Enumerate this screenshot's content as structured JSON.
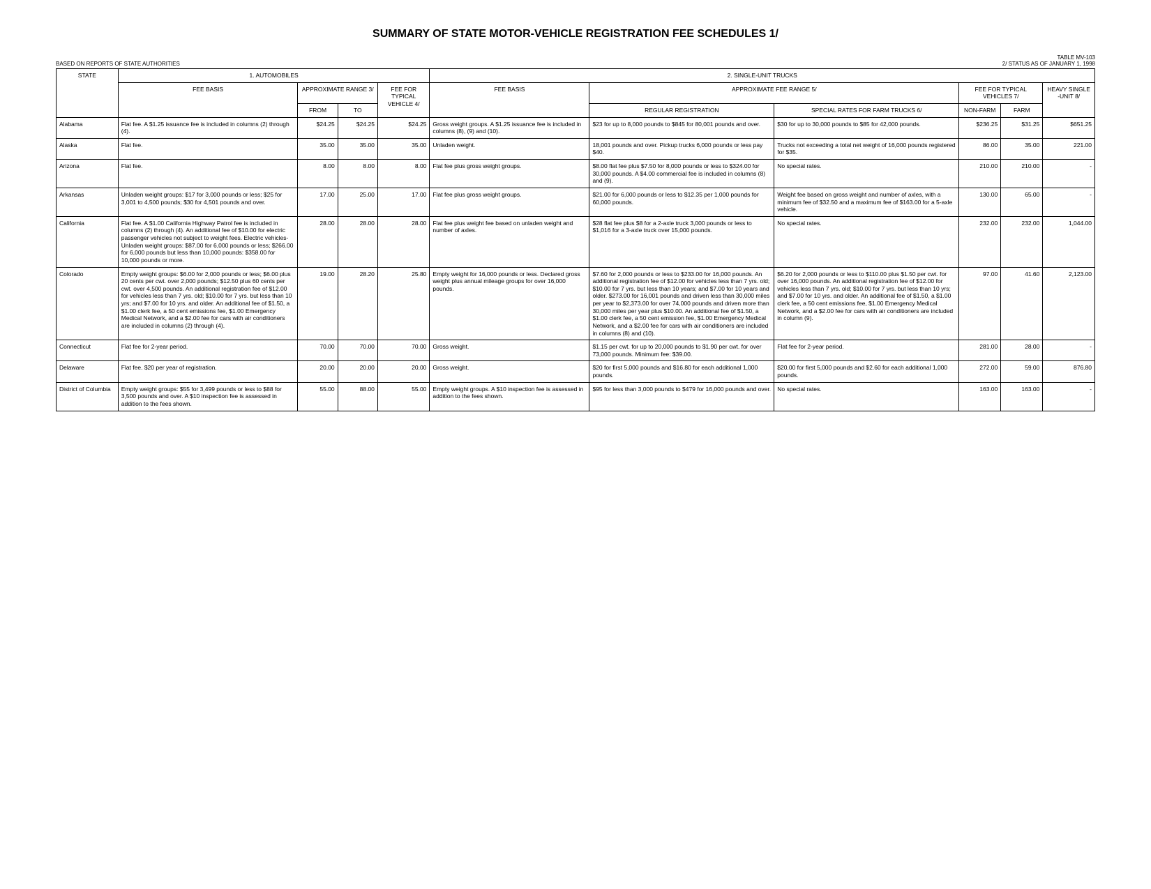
{
  "title": "SUMMARY OF STATE MOTOR-VEHICLE REGISTRATION FEE SCHEDULES   1/",
  "table_no": "TABLE MV-103",
  "subtitle_left": "BASED ON REPORTS OF STATE AUTHORITIES",
  "subtitle_right": "2/ STATUS AS OF JANUARY 1, 1998",
  "columns": {
    "automobiles": "1.  AUTOMOBILES",
    "single_unit": "2.  SINGLE-UNIT TRUCKS",
    "state": "STATE",
    "fee_basis": "FEE BASIS",
    "approx_range": "APPROXIMATE RANGE  3/",
    "from": "FROM",
    "to": "TO",
    "fee_typical": "FEE FOR TYPICAL VEHICLE 4/",
    "fee_basis2": "FEE BASIS",
    "approx_range2": "APPROXIMATE FEE RANGE  5/",
    "regular_reg": "REGULAR REGISTRATION",
    "special_rates": "SPECIAL RATES FOR FARM TRUCKS  6/",
    "fee_typical2": "FEE FOR TYPICAL VEHICLES  7/",
    "nonfarm": "NON-FARM",
    "farm": "FARM",
    "heavy": "HEAVY SINGLE -UNIT 8/"
  },
  "rows": [
    {
      "state": "Alabama",
      "auto_basis": "Flat fee.  A $1.25 issuance fee is included in columns (2) through (4).",
      "from": "$24.25",
      "to": "$24.25",
      "typ": "$24.25",
      "truck_basis": "Gross weight groups.  A $1.25 issuance fee is included in columns (8), (9) and (10).",
      "regular": "$23 for up to 8,000 pounds to  $845 for 80,001 pounds and over.",
      "special": "$30 for up to 30,000 pounds to $85 for 42,000 pounds.",
      "nf": "$236.25",
      "f": "$31.25",
      "heavy": "$651.25"
    },
    {
      "state": "Alaska",
      "auto_basis": "Flat fee.",
      "from": "35.00",
      "to": "35.00",
      "typ": "35.00",
      "truck_basis": "Unladen weight.",
      "regular": "18,001 pounds and over.  Pickup trucks 6,000 pounds or less pay $40.",
      "special": "Trucks not exceeding a total net weight of 16,000 pounds registered for $35.",
      "nf": "86.00",
      "f": "35.00",
      "heavy": "221.00"
    },
    {
      "state": "Arizona",
      "auto_basis": "Flat fee.",
      "from": "8.00",
      "to": "8.00",
      "typ": "8.00",
      "truck_basis": "Flat fee plus gross weight groups.",
      "regular": "$8.00 flat fee plus $7.50 for 8,000 pounds or less to $324.00 for 30,000 pounds.  A $4.00 commercial fee is included in columns (8) and (9).",
      "special": "No special rates.",
      "nf": "210.00",
      "f": "210.00",
      "heavy": "-"
    },
    {
      "state": "Arkansas",
      "auto_basis": "Unladen weight groups: $17 for 3,000 pounds or less; $25 for 3,001 to 4,500 pounds; $30 for 4,501 pounds and over.",
      "from": "17.00",
      "to": "25.00",
      "typ": "17.00",
      "truck_basis": "Flat fee plus gross weight groups.",
      "regular": "$21.00 for 6,000 pounds or less to $12.35 per 1,000 pounds for 60,000 pounds.",
      "special": "Weight fee based on gross weight and number of axles, with a minimum fee of $32.50 and a maximum fee of $163.00 for a 5-axle vehicle.",
      "nf": "130.00",
      "f": "65.00",
      "heavy": "-"
    },
    {
      "state": "California",
      "auto_basis": "Flat fee.  A $1.00 California Highway Patrol fee is included in columns (2) through (4).  An additional fee of $10.00 for electric passenger vehicles not subject to weight fees. Electric vehicles- Unladen weight groups:  $87.00 for 6,000 pounds or less; $266.00 for 6,000 pounds but less than 10,000 pounds: $358.00 for 10,000 pounds or more.",
      "from": "28.00",
      "to": "28.00",
      "typ": "28.00",
      "truck_basis": "Flat fee plus weight fee based on unladen weight and number of axles.",
      "regular": "$28 flat fee plus $8 for a  2-axle truck 3,000 pounds or less  to $1,016 for a 3-axle truck over 15,000 pounds.",
      "special": "No special rates.",
      "nf": "232.00",
      "f": "232.00",
      "heavy": "1,044.00"
    },
    {
      "state": "Colorado",
      "auto_basis": "Empty weight groups: $6.00 for 2,000 pounds or less; $6.00 plus 20 cents per cwt. over 2,000 pounds; $12.50 plus 60 cents per cwt. over 4,500 pounds. An additional registration fee of $12.00 for vehicles less than 7 yrs. old; $10.00 for 7 yrs. but less than 10 yrs; and $7.00 for 10 yrs. and older.  An additional fee of $1.50, a $1.00 clerk fee, a 50 cent emissions fee, $1.00 Emergency Medical Network, and a $2.00 fee for cars with air conditioners are included in columns (2) through (4).",
      "from": "19.00",
      "to": "28.20",
      "typ": "25.80",
      "truck_basis": "Empty weight for 16,000 pounds or less.  Declared gross weight plus annual mileage groups for over 16,000 pounds.",
      "regular": "$7.60 for 2,000 pounds or less to  $233.00 for 16,000 pounds.  An additional registration fee of $12.00 for vehicles less than 7 yrs. old; $10.00 for 7 yrs. but less than 10 years; and $7.00 for 10 years and older.  $273.00 for 16,001 pounds and driven less than 30,000 miles per year to $2,373.00 for over 74,000 pounds and driven more than 30,000 miles per year plus $10.00.  An additional fee of $1.50, a $1.00  clerk fee, a 50 cent emission fee,  $1.00 Emergency Medical Network, and a $2.00 fee for cars with air conditioners are included in  columns (8) and (10).",
      "special": "$6.20 for 2,000 pounds or less to $110.00 plus $1.50 per cwt. for over 16,000 pounds.   An additional registration fee of $12.00 for vehicles less than 7 yrs. old; $10.00 for 7 yrs. but less than 10 yrs; and $7.00 for 10 yrs. and older.  An additional fee of $1.50, a $1.00 clerk fee, a 50 cent emissions fee, $1.00 Emergency Medical Network, and a $2.00 fee for cars with air conditioners are included in column (9).",
      "nf": "97.00",
      "f": "41.60",
      "heavy": "2,123.00"
    },
    {
      "state": "Connecticut",
      "auto_basis": "Flat fee for 2-year period.",
      "from": "70.00",
      "to": "70.00",
      "typ": "70.00",
      "truck_basis": "Gross weight.",
      "regular": "$1.15 per cwt. for up to 20,000 pounds to $1.90 per cwt. for over 73,000 pounds. Minimum fee: $39.00.",
      "special": "Flat fee for 2-year period.",
      "nf": "281.00",
      "f": "28.00",
      "heavy": "-"
    },
    {
      "state": "Delaware",
      "auto_basis": "Flat fee.  $20 per year of registration.",
      "from": "20.00",
      "to": "20.00",
      "typ": "20.00",
      "truck_basis": "Gross weight.",
      "regular": "$20 for first 5,000 pounds and $16.80 for each additional 1,000 pounds.",
      "special": "$20.00 for first 5,000 pounds and $2.60 for each additional 1,000 pounds.",
      "nf": "272.00",
      "f": "59.00",
      "heavy": "876.80"
    },
    {
      "state": "District of Columbia",
      "auto_basis": "Empty weight groups: $55 for  3,499 pounds or less to $88 for 3,500 pounds and over.  A $10 inspection fee is assessed in  addition to the fees shown.",
      "from": "55.00",
      "to": "88.00",
      "typ": "55.00",
      "truck_basis": "Empty weight groups.  A $10 inspection fee is assessed in addition to the fees shown.",
      "regular": "$95 for less than 3,000 pounds to $479 for 16,000 pounds and over.",
      "special": "No special rates.",
      "nf": "163.00",
      "f": "163.00",
      "heavy": "-"
    }
  ]
}
